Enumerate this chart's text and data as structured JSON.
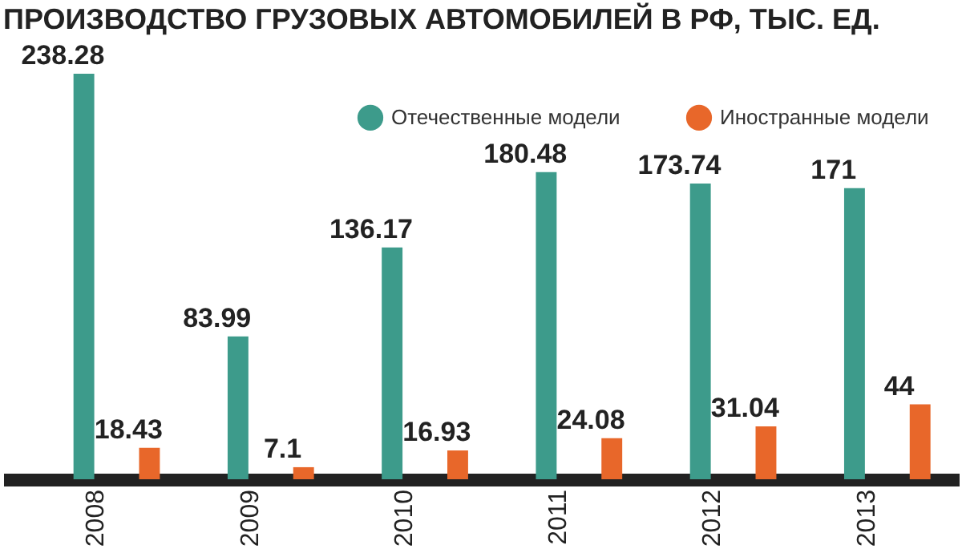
{
  "chart_data": {
    "type": "bar",
    "title": "ПРОИЗВОДСТВО ГРУЗОВЫХ АВТОМОБИЛЕЙ В РФ, ТЫС. ЕД.",
    "categories": [
      "2008",
      "2009",
      "2010",
      "2011",
      "2012",
      "2013"
    ],
    "series": [
      {
        "name": "Отечественные модели",
        "color": "#3d9b8b",
        "values": [
          238.28,
          83.99,
          136.17,
          180.48,
          173.74,
          171
        ]
      },
      {
        "name": "Иностранные модели",
        "color": "#e8672a",
        "values": [
          18.43,
          7.1,
          16.93,
          24.08,
          31.04,
          44
        ]
      }
    ],
    "data_labels": true,
    "legend": "top right",
    "grid": false
  }
}
